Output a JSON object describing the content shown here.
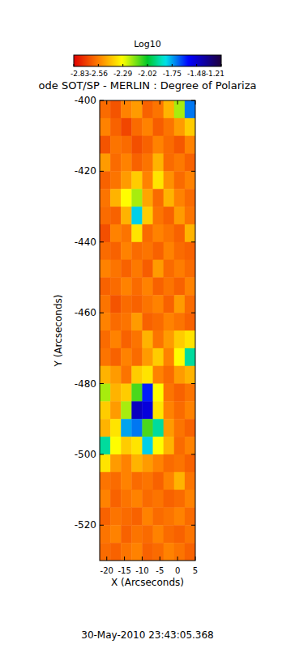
{
  "chart_data": {
    "type": "heatmap",
    "title": "ode SOT/SP - MERLIN : Degree of Polariza",
    "subtitle": "30-May-2010 23:43:05.368",
    "x_label": "X (Arcseconds)",
    "y_label": "Y (Arcseconds)",
    "xlim": [
      -22,
      5
    ],
    "ylim": [
      -400,
      -530
    ],
    "xticks": [
      -20,
      -15,
      -10,
      -5,
      0,
      5
    ],
    "yticks": [
      -400,
      -420,
      -440,
      -460,
      -480,
      -500,
      -520
    ],
    "x": [
      -20.5,
      -17.5,
      -14.5,
      -11.5,
      -8.5,
      -5.5,
      -2.5,
      0.5,
      3.5
    ],
    "y": [
      -402.5,
      -407.5,
      -412.5,
      -417.5,
      -422.5,
      -427.5,
      -432.5,
      -437.5,
      -442.5,
      -447.5,
      -452.5,
      -457.5,
      -462.5,
      -467.5,
      -472.5,
      -477.5,
      -482.5,
      -487.5,
      -492.5,
      -497.5,
      -502.5,
      -507.5,
      -512.5,
      -517.5,
      -522.5,
      -527.5
    ],
    "z": [
      [
        -2.6,
        -2.65,
        -2.55,
        -2.5,
        -2.62,
        -2.58,
        -2.45,
        -2.2,
        -1.7
      ],
      [
        -2.55,
        -2.62,
        -2.68,
        -2.6,
        -2.55,
        -2.63,
        -2.58,
        -2.5,
        -2.4
      ],
      [
        -2.65,
        -2.58,
        -2.6,
        -2.66,
        -2.62,
        -2.55,
        -2.6,
        -2.64,
        -2.55
      ],
      [
        -2.5,
        -2.6,
        -2.55,
        -2.62,
        -2.58,
        -2.45,
        -2.6,
        -2.57,
        -2.62
      ],
      [
        -2.62,
        -2.58,
        -2.5,
        -2.4,
        -2.55,
        -2.35,
        -2.52,
        -2.6,
        -2.55
      ],
      [
        -2.58,
        -2.45,
        -2.3,
        -2.2,
        -2.48,
        -2.6,
        -2.45,
        -2.55,
        -2.6
      ],
      [
        -2.6,
        -2.62,
        -2.45,
        -1.8,
        -2.4,
        -2.58,
        -2.62,
        -2.5,
        -2.58
      ],
      [
        -2.66,
        -2.55,
        -2.58,
        -2.35,
        -2.6,
        -2.55,
        -2.58,
        -2.62,
        -2.45
      ],
      [
        -2.6,
        -2.62,
        -2.55,
        -2.6,
        -2.58,
        -2.62,
        -2.55,
        -2.6,
        -2.62
      ],
      [
        -2.55,
        -2.58,
        -2.62,
        -2.57,
        -2.63,
        -2.5,
        -2.6,
        -2.56,
        -2.6
      ],
      [
        -2.62,
        -2.6,
        -2.55,
        -2.6,
        -2.55,
        -2.62,
        -2.58,
        -2.62,
        -2.55
      ],
      [
        -2.58,
        -2.65,
        -2.6,
        -2.62,
        -2.58,
        -2.55,
        -2.62,
        -2.5,
        -2.6
      ],
      [
        -2.55,
        -2.6,
        -2.58,
        -2.5,
        -2.62,
        -2.6,
        -2.55,
        -2.58,
        -2.62
      ],
      [
        -2.6,
        -2.55,
        -2.62,
        -2.58,
        -2.45,
        -2.58,
        -2.5,
        -2.4,
        -2.35
      ],
      [
        -2.58,
        -2.62,
        -2.55,
        -2.6,
        -2.5,
        -2.4,
        -2.55,
        -2.3,
        -1.9
      ],
      [
        -2.45,
        -2.5,
        -2.58,
        -2.4,
        -2.35,
        -2.55,
        -2.6,
        -2.5,
        -2.45
      ],
      [
        -2.2,
        -2.45,
        -2.4,
        -2.1,
        -1.6,
        -2.3,
        -2.58,
        -2.62,
        -2.58
      ],
      [
        -2.4,
        -2.5,
        -2.2,
        -1.45,
        -1.5,
        -2.35,
        -2.55,
        -2.6,
        -2.55
      ],
      [
        -2.45,
        -2.35,
        -1.75,
        -1.7,
        -2.1,
        -1.9,
        -2.5,
        -2.58,
        -2.62
      ],
      [
        -1.9,
        -2.3,
        -2.4,
        -2.35,
        -1.8,
        -2.3,
        -2.45,
        -2.6,
        -2.55
      ],
      [
        -2.35,
        -2.5,
        -2.55,
        -2.45,
        -2.5,
        -2.55,
        -2.6,
        -2.58,
        -2.62
      ],
      [
        -2.58,
        -2.6,
        -2.55,
        -2.6,
        -2.58,
        -2.62,
        -2.55,
        -2.45,
        -2.58
      ],
      [
        -2.55,
        -2.62,
        -2.58,
        -2.55,
        -2.6,
        -2.58,
        -2.62,
        -2.6,
        -2.55
      ],
      [
        -2.62,
        -2.58,
        -2.6,
        -2.62,
        -2.55,
        -2.6,
        -2.58,
        -2.55,
        -2.6
      ],
      [
        -2.58,
        -2.55,
        -2.62,
        -2.58,
        -2.6,
        -2.55,
        -2.6,
        -2.62,
        -2.58
      ],
      [
        -2.6,
        -2.62,
        -2.58,
        -2.55,
        -2.62,
        -2.6,
        -2.55,
        -2.58,
        -2.62
      ]
    ],
    "colorbar": {
      "label": "Log10",
      "range": [
        -2.83,
        -1.21
      ],
      "ticks": [
        -2.83,
        -2.56,
        -2.29,
        -2.02,
        -1.75,
        -1.48,
        -1.21
      ]
    }
  }
}
